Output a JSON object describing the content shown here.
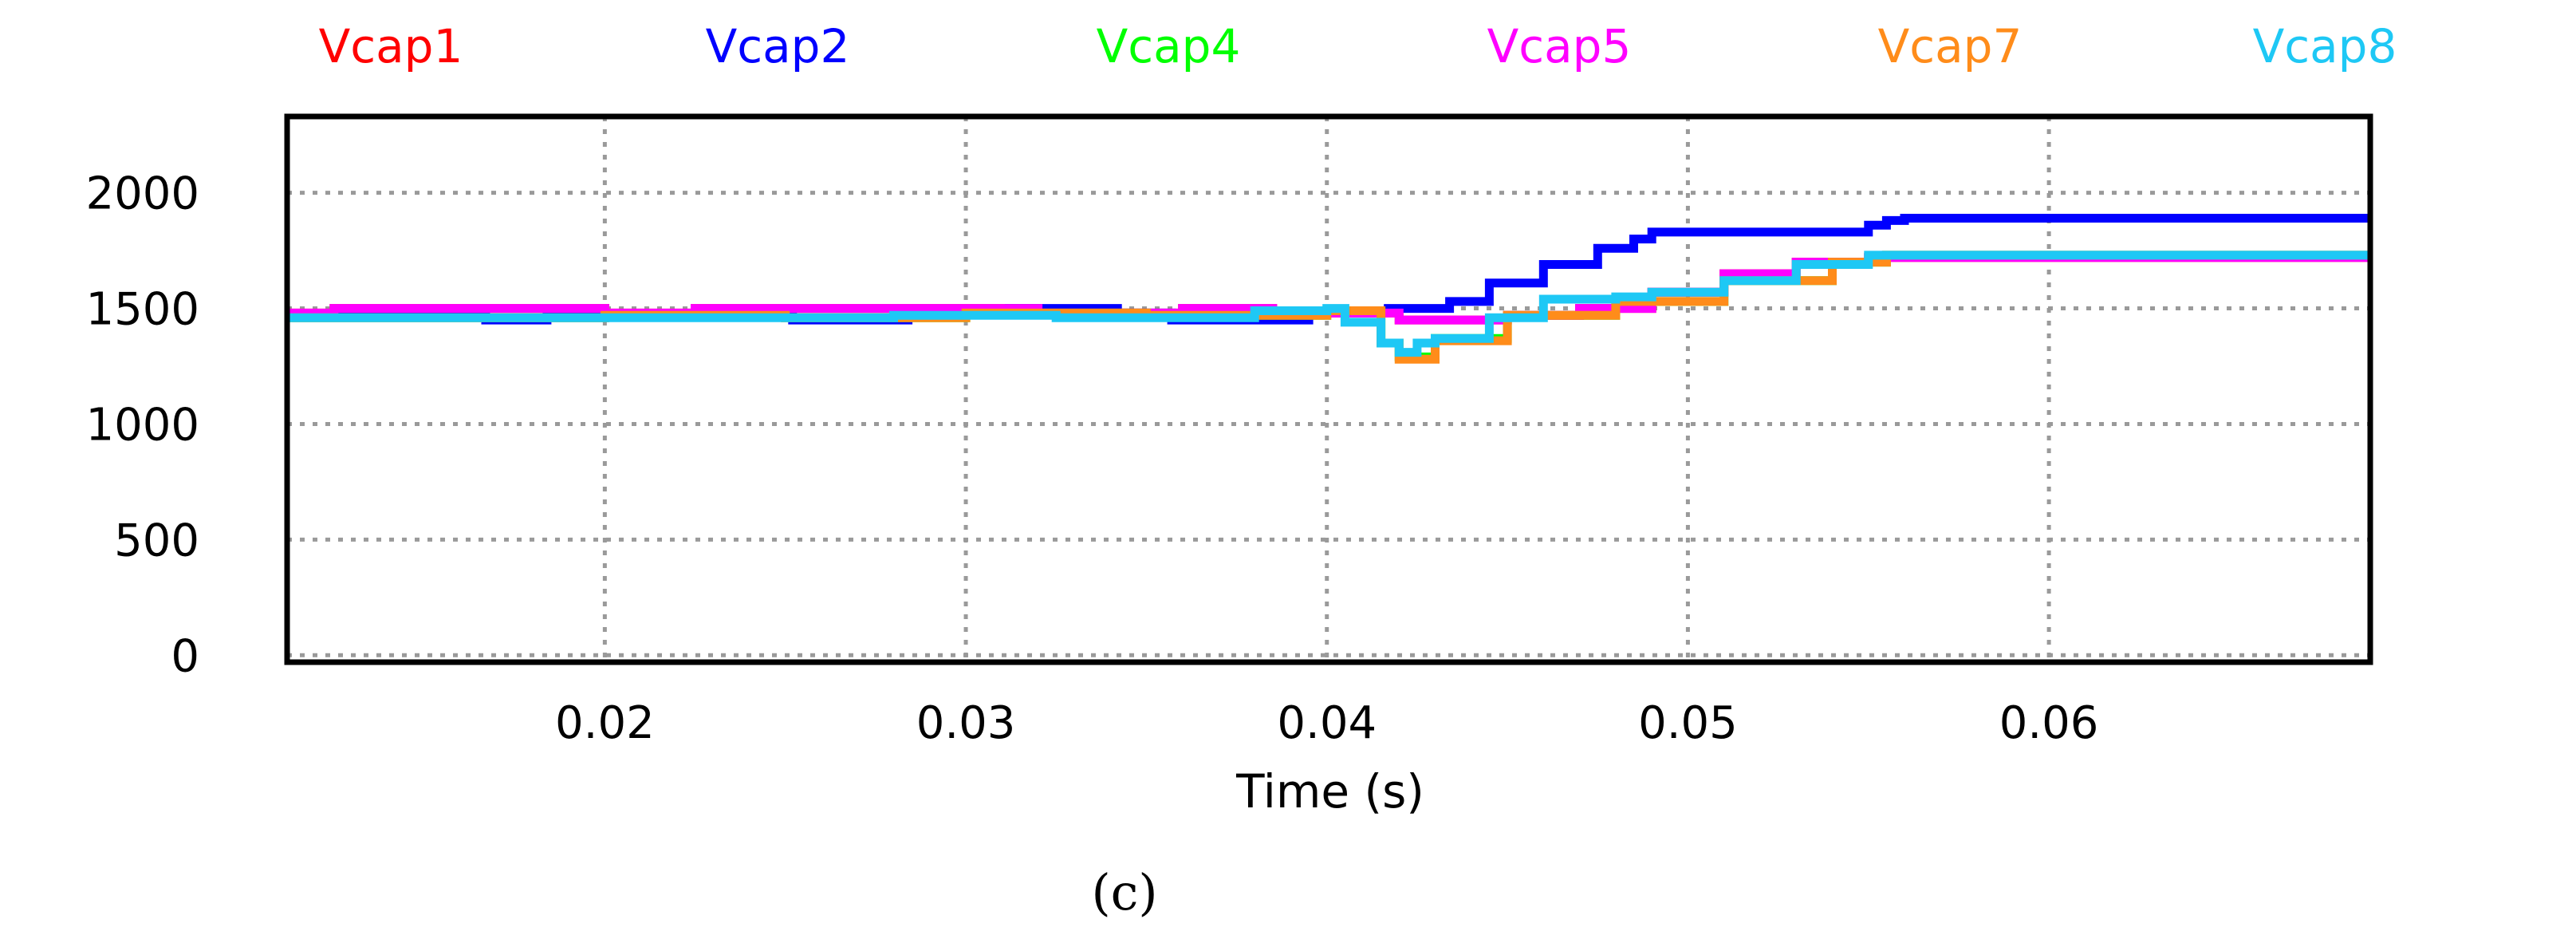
{
  "chart_data": {
    "type": "line",
    "title": "",
    "xlabel": "Time (s)",
    "ylabel": "",
    "caption": "(c)",
    "xlim": [
      0.0112,
      0.0689
    ],
    "ylim": [
      -30,
      2330
    ],
    "x_ticks": [
      0.02,
      0.03,
      0.04,
      0.05,
      0.06
    ],
    "x_tick_labels": [
      "0.02",
      "0.03",
      "0.04",
      "0.05",
      "0.06"
    ],
    "y_ticks": [
      0,
      500,
      1000,
      1500,
      2000
    ],
    "y_tick_labels": [
      "0",
      "500",
      "1000",
      "1500",
      "2000"
    ],
    "grid": true,
    "legend_position": "top",
    "series": [
      {
        "name": "Vcap1",
        "color": "#ff0000",
        "x": [
          0.0112,
          0.012,
          0.0125,
          0.018,
          0.02,
          0.0225,
          0.028,
          0.032,
          0.036,
          0.037,
          0.0385,
          0.04,
          0.042,
          0.043,
          0.045,
          0.047,
          0.049,
          0.051,
          0.053,
          0.055,
          0.057,
          0.0689
        ],
        "y": [
          1480,
          1480,
          1500,
          1500,
          1480,
          1500,
          1500,
          1480,
          1500,
          1500,
          1490,
          1480,
          1450,
          1450,
          1470,
          1500,
          1570,
          1650,
          1700,
          1720,
          1720,
          1720
        ]
      },
      {
        "name": "Vcap2",
        "color": "#0000ff",
        "x": [
          0.0112,
          0.0165,
          0.0167,
          0.0182,
          0.0184,
          0.025,
          0.0252,
          0.0282,
          0.0284,
          0.031,
          0.0312,
          0.034,
          0.0342,
          0.0355,
          0.0357,
          0.0395,
          0.0417,
          0.042,
          0.0434,
          0.0445,
          0.046,
          0.0475,
          0.0485,
          0.049,
          0.053,
          0.055,
          0.0555,
          0.056,
          0.0689
        ],
        "y": [
          1470,
          1470,
          1450,
          1450,
          1470,
          1470,
          1450,
          1450,
          1480,
          1480,
          1500,
          1500,
          1480,
          1480,
          1450,
          1490,
          1500,
          1500,
          1530,
          1610,
          1690,
          1760,
          1800,
          1830,
          1830,
          1860,
          1880,
          1890,
          1890
        ]
      },
      {
        "name": "Vcap4",
        "color": "#00ff00",
        "x": [
          0.0112,
          0.02,
          0.025,
          0.03,
          0.035,
          0.04,
          0.0415,
          0.042,
          0.043,
          0.045,
          0.048,
          0.051,
          0.054,
          0.0555,
          0.0689
        ],
        "y": [
          1460,
          1470,
          1460,
          1480,
          1470,
          1490,
          1350,
          1290,
          1370,
          1470,
          1530,
          1620,
          1700,
          1730,
          1730
        ]
      },
      {
        "name": "Vcap5",
        "color": "#ff00ff",
        "x": [
          0.0112,
          0.012,
          0.0125,
          0.018,
          0.02,
          0.0225,
          0.028,
          0.032,
          0.036,
          0.037,
          0.0385,
          0.04,
          0.042,
          0.043,
          0.045,
          0.047,
          0.049,
          0.051,
          0.053,
          0.055,
          0.057,
          0.0689
        ],
        "y": [
          1480,
          1480,
          1500,
          1500,
          1480,
          1500,
          1500,
          1480,
          1500,
          1500,
          1490,
          1480,
          1450,
          1450,
          1470,
          1500,
          1570,
          1650,
          1700,
          1720,
          1720,
          1720
        ]
      },
      {
        "name": "Vcap7",
        "color": "#ff8c1a",
        "x": [
          0.0112,
          0.02,
          0.025,
          0.03,
          0.035,
          0.04,
          0.0415,
          0.042,
          0.043,
          0.045,
          0.048,
          0.051,
          0.054,
          0.0555,
          0.0689
        ],
        "y": [
          1460,
          1470,
          1460,
          1480,
          1470,
          1490,
          1350,
          1280,
          1360,
          1470,
          1530,
          1620,
          1700,
          1730,
          1730
        ]
      },
      {
        "name": "Vcap8",
        "color": "#1ec8f5",
        "x": [
          0.0112,
          0.02,
          0.025,
          0.028,
          0.03,
          0.0325,
          0.0355,
          0.038,
          0.04,
          0.0405,
          0.0415,
          0.042,
          0.0425,
          0.043,
          0.0445,
          0.046,
          0.048,
          0.049,
          0.051,
          0.053,
          0.055,
          0.0689
        ],
        "y": [
          1460,
          1460,
          1460,
          1470,
          1470,
          1460,
          1460,
          1490,
          1500,
          1440,
          1350,
          1310,
          1350,
          1370,
          1460,
          1540,
          1550,
          1570,
          1620,
          1690,
          1730,
          1730
        ]
      }
    ]
  }
}
